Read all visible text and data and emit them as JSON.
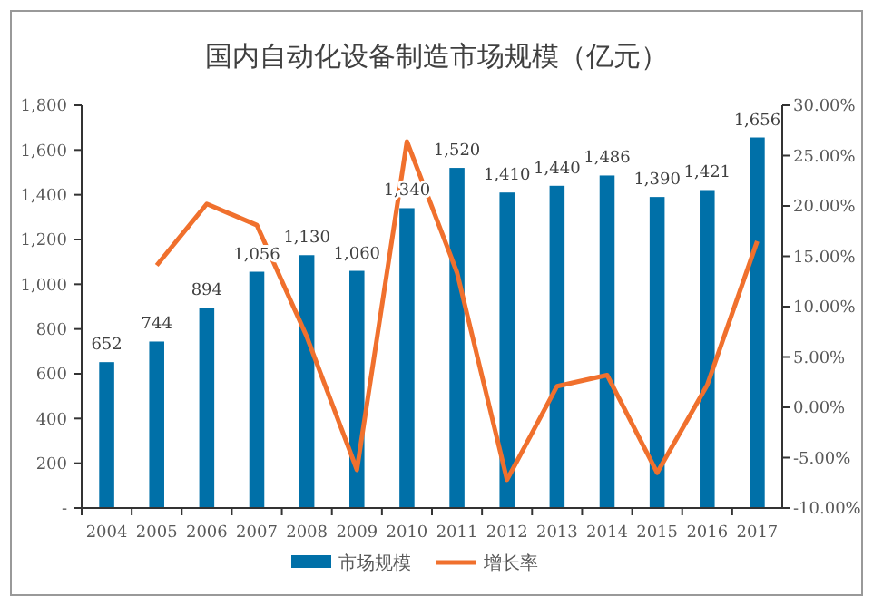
{
  "chart_data": {
    "type": "bar",
    "title": "国内自动化设备制造市场规模（亿元）",
    "categories": [
      "2004",
      "2005",
      "2006",
      "2007",
      "2008",
      "2009",
      "2010",
      "2011",
      "2012",
      "2013",
      "2014",
      "2015",
      "2016",
      "2017"
    ],
    "series": [
      {
        "name": "市场规模",
        "color": "#0070a8",
        "values": [
          652,
          744,
          894,
          1056,
          1130,
          1060,
          1340,
          1520,
          1410,
          1440,
          1486,
          1390,
          1421,
          1656
        ],
        "value_labels": [
          "652",
          "744",
          "894",
          "1,056",
          "1,130",
          "1,060",
          "1,340",
          "1,520",
          "1,410",
          "1,440",
          "1,486",
          "1,390",
          "1,421",
          "1,656"
        ]
      },
      {
        "name": "增长率",
        "type": "line",
        "axis": "y2",
        "color": "#f0702d",
        "values": [
          null,
          14.1,
          20.2,
          18.1,
          7.0,
          -6.2,
          26.4,
          13.4,
          -7.2,
          2.1,
          3.2,
          -6.5,
          2.2,
          16.5
        ]
      }
    ],
    "ylim": [
      0,
      1800
    ],
    "yticks": [
      {
        "value": 0,
        "label": "-"
      },
      200,
      400,
      600,
      800,
      {
        "value": 1000,
        "label": "1,000"
      },
      {
        "value": 1200,
        "label": "1,200"
      },
      {
        "value": 1400,
        "label": "1,400"
      },
      {
        "value": 1600,
        "label": "1,600"
      },
      {
        "value": 1800,
        "label": "1,800"
      }
    ],
    "y2lim": [
      -10,
      30
    ],
    "y2ticks": [
      {
        "value": -10,
        "label": "-10.00%"
      },
      {
        "value": -5,
        "label": "-5.00%"
      },
      {
        "value": 0,
        "label": "0.00%"
      },
      {
        "value": 5,
        "label": "5.00%"
      },
      {
        "value": 10,
        "label": "10.00%"
      },
      {
        "value": 15,
        "label": "15.00%"
      },
      {
        "value": 20,
        "label": "20.00%"
      },
      {
        "value": 25,
        "label": "25.00%"
      },
      {
        "value": 30,
        "label": "30.00%"
      }
    ],
    "grid": false,
    "legend": "bottom",
    "marker": "none",
    "line_style": "solid"
  }
}
